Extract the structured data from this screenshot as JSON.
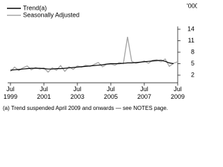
{
  "chart_data": {
    "type": "line",
    "footnote": "(a) Trend suspended April 2009 and onwards — see NOTES page.",
    "y_unit": "'000",
    "x": [
      1999.5,
      1999.75,
      2000,
      2000.25,
      2000.5,
      2000.75,
      2001,
      2001.25,
      2001.5,
      2001.75,
      2002,
      2002.25,
      2002.5,
      2002.75,
      2003,
      2003.25,
      2003.5,
      2003.75,
      2004,
      2004.25,
      2004.5,
      2004.75,
      2005,
      2005.25,
      2005.5,
      2005.75,
      2006,
      2006.25,
      2006.5,
      2006.75,
      2007,
      2007.25,
      2007.5,
      2007.75,
      2008,
      2008.25,
      2008.5,
      2008.75,
      2009,
      2009.25,
      2009.5
    ],
    "series": [
      {
        "name": "Trend(a)",
        "color": "#000000",
        "values": [
          3.3,
          3.4,
          3.5,
          3.6,
          3.7,
          3.8,
          3.8,
          3.8,
          3.7,
          3.6,
          3.6,
          3.7,
          3.7,
          3.8,
          3.9,
          4.0,
          4.1,
          4.2,
          4.3,
          4.4,
          4.5,
          4.6,
          4.7,
          4.9,
          5.0,
          5.0,
          5.0,
          5.1,
          5.2,
          5.2,
          5.3,
          5.4,
          5.5,
          5.6,
          5.7,
          5.8,
          5.9,
          5.6,
          5.2,
          5.0,
          null
        ]
      },
      {
        "name": "Seasonally Adjusted",
        "color": "#a6a6a6",
        "values": [
          3.0,
          4.1,
          3.2,
          3.9,
          4.4,
          3.4,
          4.0,
          3.6,
          3.9,
          2.8,
          3.9,
          3.3,
          4.5,
          3.0,
          4.2,
          3.5,
          4.4,
          4.1,
          4.6,
          4.3,
          4.8,
          5.3,
          4.2,
          4.8,
          4.9,
          4.6,
          5.3,
          5.0,
          12.0,
          5.6,
          5.1,
          5.3,
          5.7,
          5.1,
          5.9,
          6.0,
          5.5,
          6.2,
          4.3,
          5.1,
          5.5
        ]
      }
    ],
    "xlim": [
      1999.5,
      2009.5
    ],
    "xticks": [
      {
        "value": 1999.5,
        "label": "Jul 1999"
      },
      {
        "value": 2001.5,
        "label": "Jul 2001"
      },
      {
        "value": 2003.5,
        "label": "Jul 2003"
      },
      {
        "value": 2005.5,
        "label": "Jul 2005"
      },
      {
        "value": 2007.5,
        "label": "Jul 2007"
      },
      {
        "value": 2009.5,
        "label": "Jul 2009"
      }
    ],
    "ylim": [
      0,
      14
    ],
    "yticks": [
      2,
      5,
      8,
      11,
      14
    ]
  }
}
